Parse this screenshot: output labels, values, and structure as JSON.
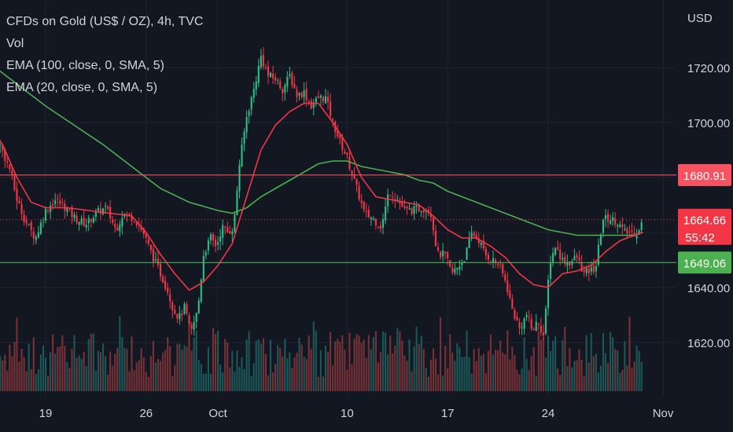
{
  "legend": {
    "title": "CFDs on Gold (US$ / OZ), 4h, TVC",
    "vol": "Vol",
    "ema100": "EMA (100, close, 0, SMA, 5)",
    "ema20": "EMA (20, close, 0, SMA, 5)"
  },
  "colors": {
    "background": "#131722",
    "grid": "#1f2330",
    "text": "#d1d4dc",
    "up": "#26a69a",
    "down": "#ef5350",
    "up_candle": "#2ebd85",
    "down_candle": "#f23645",
    "ema100": "#4caf50",
    "ema20": "#f23645",
    "resistance": "#f7525f",
    "support": "#4caf50"
  },
  "chart_data": {
    "type": "candlestick",
    "currency_label": "USD",
    "y_ticks": [
      1620,
      1640,
      1660,
      1680,
      1700,
      1720
    ],
    "y_tick_labels": [
      "1620.00",
      "1640.00",
      "1660.00",
      "1680.00",
      "1700.00",
      "1720.00"
    ],
    "ylim": [
      1607,
      1731
    ],
    "x_ticks": [
      {
        "label": "19",
        "day": 19
      },
      {
        "label": "26",
        "day": 26
      },
      {
        "label": "Oct",
        "day": 31
      },
      {
        "label": "10",
        "day": 40
      },
      {
        "label": "17",
        "day": 47
      },
      {
        "label": "24",
        "day": 54
      },
      {
        "label": "Nov",
        "day": 62
      }
    ],
    "xlim_days": [
      15.0,
      63.8
    ],
    "horizontal_lines": [
      {
        "value": 1680.91,
        "label": "1680.91",
        "color": "#f7525f"
      },
      {
        "value": 1649.06,
        "label": "1649.06",
        "color": "#4caf50"
      }
    ],
    "current_price": {
      "value": 1664.66,
      "label": "1664.66",
      "countdown": "55:42"
    },
    "close_path": [
      [
        15.0,
        1700
      ],
      [
        15.8,
        1692
      ],
      [
        16.5,
        1683
      ],
      [
        17.0,
        1672
      ],
      [
        17.6,
        1664
      ],
      [
        18.3,
        1658
      ],
      [
        19.0,
        1668
      ],
      [
        19.7,
        1672
      ],
      [
        20.4,
        1669
      ],
      [
        21.1,
        1665
      ],
      [
        21.8,
        1663
      ],
      [
        22.5,
        1667
      ],
      [
        23.2,
        1669
      ],
      [
        23.9,
        1661
      ],
      [
        24.4,
        1667
      ],
      [
        25.2,
        1665
      ],
      [
        25.8,
        1660
      ],
      [
        26.4,
        1652
      ],
      [
        27.0,
        1645
      ],
      [
        27.5,
        1639
      ],
      [
        27.9,
        1632
      ],
      [
        28.3,
        1629
      ],
      [
        28.7,
        1633
      ],
      [
        29.1,
        1623
      ],
      [
        29.6,
        1632
      ],
      [
        30.0,
        1652
      ],
      [
        30.5,
        1658
      ],
      [
        30.9,
        1655
      ],
      [
        31.3,
        1662
      ],
      [
        31.7,
        1660
      ],
      [
        32.1,
        1662
      ],
      [
        32.5,
        1685
      ],
      [
        33.0,
        1702
      ],
      [
        33.5,
        1712
      ],
      [
        34.0,
        1724
      ],
      [
        34.5,
        1717
      ],
      [
        35.0,
        1716
      ],
      [
        35.5,
        1712
      ],
      [
        36.0,
        1717
      ],
      [
        36.5,
        1710
      ],
      [
        37.0,
        1711
      ],
      [
        37.5,
        1706
      ],
      [
        38.0,
        1709
      ],
      [
        38.5,
        1709
      ],
      [
        39.0,
        1700
      ],
      [
        39.5,
        1693
      ],
      [
        40.0,
        1687
      ],
      [
        40.6,
        1677
      ],
      [
        41.2,
        1667
      ],
      [
        41.8,
        1665
      ],
      [
        42.4,
        1662
      ],
      [
        42.9,
        1675
      ],
      [
        43.5,
        1672
      ],
      [
        44.0,
        1668
      ],
      [
        44.6,
        1668
      ],
      [
        45.2,
        1669
      ],
      [
        45.8,
        1668
      ],
      [
        46.3,
        1652
      ],
      [
        46.8,
        1652
      ],
      [
        47.3,
        1645
      ],
      [
        47.8,
        1648
      ],
      [
        48.2,
        1651
      ],
      [
        48.7,
        1660
      ],
      [
        49.2,
        1657
      ],
      [
        49.6,
        1652
      ],
      [
        50.1,
        1650
      ],
      [
        50.6,
        1648
      ],
      [
        51.1,
        1641
      ],
      [
        51.5,
        1632
      ],
      [
        52.0,
        1625
      ],
      [
        52.5,
        1630
      ],
      [
        52.9,
        1624
      ],
      [
        53.3,
        1628
      ],
      [
        53.7,
        1622
      ],
      [
        54.1,
        1649
      ],
      [
        54.5,
        1655
      ],
      [
        55.0,
        1650
      ],
      [
        55.5,
        1649
      ],
      [
        56.0,
        1651
      ],
      [
        56.5,
        1645
      ],
      [
        56.9,
        1646
      ],
      [
        57.3,
        1647
      ],
      [
        57.8,
        1665
      ],
      [
        58.3,
        1665
      ],
      [
        58.8,
        1664
      ],
      [
        59.3,
        1660
      ],
      [
        59.8,
        1660
      ],
      [
        60.2,
        1660
      ],
      [
        60.6,
        1664.66
      ]
    ],
    "ema20_path": [
      [
        15.0,
        1700
      ],
      [
        16.0,
        1692
      ],
      [
        17.0,
        1680
      ],
      [
        18.0,
        1671
      ],
      [
        19.0,
        1669
      ],
      [
        20.5,
        1669
      ],
      [
        22.0,
        1668
      ],
      [
        23.5,
        1667
      ],
      [
        25.0,
        1666
      ],
      [
        26.0,
        1660
      ],
      [
        27.0,
        1652
      ],
      [
        28.0,
        1645
      ],
      [
        29.0,
        1639
      ],
      [
        30.0,
        1642
      ],
      [
        31.0,
        1648
      ],
      [
        32.0,
        1656
      ],
      [
        33.0,
        1673
      ],
      [
        34.0,
        1690
      ],
      [
        35.0,
        1699
      ],
      [
        36.0,
        1704
      ],
      [
        37.0,
        1707
      ],
      [
        38.0,
        1707
      ],
      [
        39.0,
        1700
      ],
      [
        40.0,
        1692
      ],
      [
        41.0,
        1680
      ],
      [
        42.0,
        1673
      ],
      [
        43.0,
        1672
      ],
      [
        44.0,
        1671
      ],
      [
        45.0,
        1670
      ],
      [
        46.0,
        1666
      ],
      [
        47.0,
        1661
      ],
      [
        48.0,
        1658
      ],
      [
        49.0,
        1658
      ],
      [
        50.0,
        1655
      ],
      [
        51.0,
        1651
      ],
      [
        52.0,
        1645
      ],
      [
        53.0,
        1641
      ],
      [
        54.0,
        1640
      ],
      [
        55.0,
        1645
      ],
      [
        56.0,
        1646
      ],
      [
        57.0,
        1648
      ],
      [
        58.0,
        1653
      ],
      [
        59.0,
        1657
      ],
      [
        60.0,
        1659
      ],
      [
        60.6,
        1660
      ]
    ],
    "ema100_path": [
      [
        15.0,
        1722
      ],
      [
        17.0,
        1714
      ],
      [
        19.0,
        1706
      ],
      [
        21.0,
        1699
      ],
      [
        23.0,
        1692
      ],
      [
        25.0,
        1684
      ],
      [
        27.0,
        1676
      ],
      [
        29.0,
        1671
      ],
      [
        31.0,
        1668
      ],
      [
        32.0,
        1667
      ],
      [
        33.0,
        1669
      ],
      [
        34.0,
        1673
      ],
      [
        35.0,
        1676
      ],
      [
        36.0,
        1679
      ],
      [
        37.0,
        1682
      ],
      [
        38.0,
        1685
      ],
      [
        39.0,
        1686
      ],
      [
        40.0,
        1686
      ],
      [
        41.0,
        1684
      ],
      [
        42.0,
        1683
      ],
      [
        43.0,
        1682
      ],
      [
        44.0,
        1681
      ],
      [
        45.0,
        1679
      ],
      [
        46.0,
        1678
      ],
      [
        47.0,
        1675
      ],
      [
        48.0,
        1673
      ],
      [
        49.0,
        1671
      ],
      [
        50.0,
        1669
      ],
      [
        51.0,
        1667
      ],
      [
        52.0,
        1665
      ],
      [
        53.0,
        1663
      ],
      [
        54.0,
        1661
      ],
      [
        55.0,
        1660
      ],
      [
        56.0,
        1659
      ],
      [
        57.0,
        1659
      ],
      [
        58.0,
        1659
      ],
      [
        59.0,
        1659
      ],
      [
        60.0,
        1659
      ],
      [
        60.6,
        1660
      ]
    ]
  }
}
